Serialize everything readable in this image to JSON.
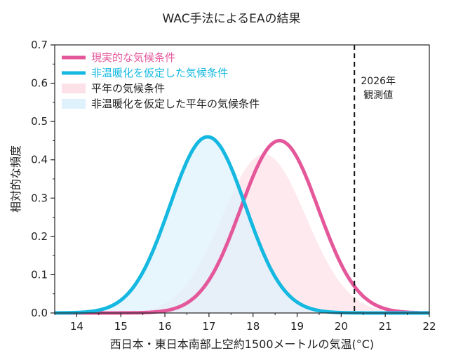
{
  "chart_data": {
    "type": "line",
    "title": "WAC手法によるEAの結果",
    "xlabel": "西日本・東日本南部上空約1500メートルの気温(°C)",
    "ylabel": "相対的な頻度",
    "xlim": [
      13.5,
      22
    ],
    "ylim": [
      0,
      0.7
    ],
    "xticks": [
      "14",
      "15",
      "16",
      "17",
      "18",
      "19",
      "20",
      "21",
      "22"
    ],
    "yticks": [
      "0.0",
      "0.1",
      "0.2",
      "0.3",
      "0.4",
      "0.5",
      "0.6",
      "0.7"
    ],
    "grid": false,
    "legend_position": "top-left",
    "series": [
      {
        "name": "現実的な気候条件",
        "kind": "line",
        "color": "#e4579a",
        "mean": 18.6,
        "peak": 0.45,
        "sd": 0.88
      },
      {
        "name": "非温暖化を仮定した気候条件",
        "kind": "line",
        "color": "#15b8e0",
        "mean": 16.97,
        "peak": 0.46,
        "sd": 0.86
      },
      {
        "name": "平年の気候条件",
        "kind": "area",
        "color": "#fde1e8",
        "mean": 18.25,
        "peak": 0.415,
        "sd": 0.95
      },
      {
        "name": "非温暖化を仮定した平年の気候条件",
        "kind": "area",
        "color": "#dff2fb",
        "mean": 17.0,
        "peak": 0.455,
        "sd": 0.87
      }
    ],
    "observed": {
      "x": 20.3,
      "label_lines": [
        "2026年",
        "観測値"
      ]
    }
  }
}
